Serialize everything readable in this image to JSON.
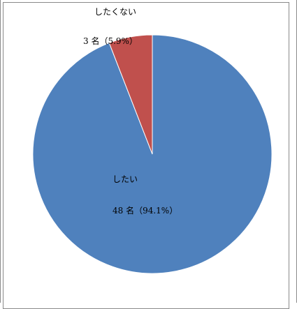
{
  "chart_data": {
    "type": "pie",
    "slices": [
      {
        "label": "したい",
        "value_text": "48 名（94.1%）",
        "count": 48,
        "percent": 94.1,
        "color": "#4f81bd"
      },
      {
        "label": "したくない",
        "value_text": "3 名（5.9%）",
        "count": 3,
        "percent": 5.9,
        "color": "#c0504d"
      }
    ],
    "start_angle": "12 o'clock",
    "direction": "clockwise"
  }
}
